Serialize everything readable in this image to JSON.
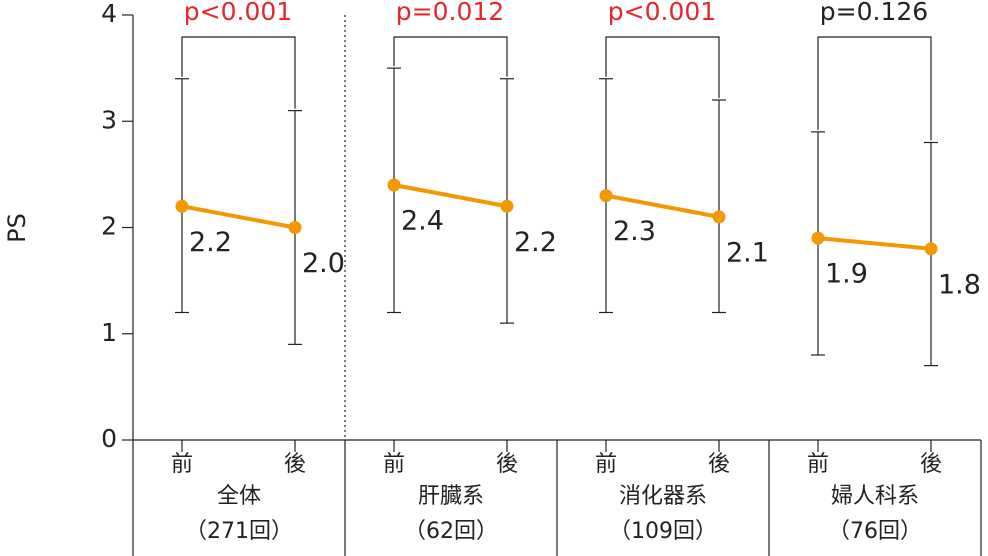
{
  "chart_data": {
    "type": "line",
    "ylabel": "PS",
    "ylim": [
      0,
      4
    ],
    "yticks": [
      0,
      1,
      2,
      3,
      4
    ],
    "color": "#f39800",
    "groups": [
      {
        "name": "全体",
        "count": "（271回）",
        "categories": [
          "前",
          "後"
        ],
        "values": [
          2.2,
          2.0
        ],
        "value_labels": [
          "2.2",
          "2.0"
        ],
        "low": [
          1.2,
          0.9
        ],
        "high": [
          3.4,
          3.1
        ],
        "p_value": "p<0.001",
        "p_color": "#e8262a"
      },
      {
        "name": "肝臓系",
        "count": "（62回）",
        "categories": [
          "前",
          "後"
        ],
        "values": [
          2.4,
          2.2
        ],
        "value_labels": [
          "2.4",
          "2.2"
        ],
        "low": [
          1.2,
          1.1
        ],
        "high": [
          3.5,
          3.4
        ],
        "p_value": "p=0.012",
        "p_color": "#e8262a"
      },
      {
        "name": "消化器系",
        "count": "（109回）",
        "categories": [
          "前",
          "後"
        ],
        "values": [
          2.3,
          2.1
        ],
        "value_labels": [
          "2.3",
          "2.1"
        ],
        "low": [
          1.2,
          1.2
        ],
        "high": [
          3.4,
          3.2
        ],
        "p_value": "p<0.001",
        "p_color": "#e8262a"
      },
      {
        "name": "婦人科系",
        "count": "（76回）",
        "categories": [
          "前",
          "後"
        ],
        "values": [
          1.9,
          1.8
        ],
        "value_labels": [
          "1.9",
          "1.8"
        ],
        "low": [
          0.8,
          0.7
        ],
        "high": [
          2.9,
          2.8
        ],
        "p_value": "p=0.126",
        "p_color": "#222222"
      }
    ]
  }
}
